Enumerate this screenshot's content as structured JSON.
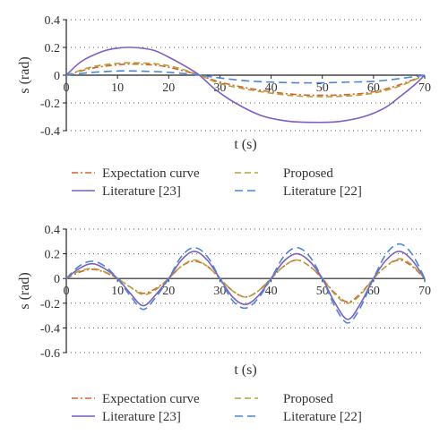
{
  "chart_data": [
    {
      "type": "line",
      "xlabel": "t (s)",
      "ylabel": "s (rad)",
      "xlim": [
        0,
        70
      ],
      "ylim": [
        -0.4,
        0.4
      ],
      "x_ticks": [
        0,
        10,
        20,
        30,
        40,
        50,
        60,
        70
      ],
      "y_ticks": [
        0.4,
        0.2,
        0,
        -0.2,
        -0.4
      ],
      "y_tick_labels": [
        "0.4",
        "0.2",
        "0",
        "-0.2",
        "-0.4"
      ],
      "grid": "horizontal-dotted",
      "legend_position": "below",
      "series": [
        {
          "name": "Expectation curve",
          "color": "#d9622b",
          "dash": "dashdot",
          "x": [
            0,
            5,
            10,
            13,
            18,
            22,
            26,
            30,
            35,
            40,
            45,
            50,
            55,
            60,
            65,
            70
          ],
          "y": [
            0,
            0.05,
            0.075,
            0.08,
            0.07,
            0.04,
            0,
            -0.05,
            -0.09,
            -0.12,
            -0.14,
            -0.145,
            -0.14,
            -0.12,
            -0.07,
            0
          ]
        },
        {
          "name": "Proposed",
          "color": "#b5a33a",
          "dash": "dashed",
          "x": [
            0,
            5,
            10,
            13,
            18,
            22,
            26,
            30,
            35,
            40,
            45,
            50,
            55,
            60,
            65,
            70
          ],
          "y": [
            0,
            0.06,
            0.085,
            0.09,
            0.08,
            0.05,
            0,
            -0.06,
            -0.1,
            -0.13,
            -0.15,
            -0.155,
            -0.15,
            -0.13,
            -0.08,
            0
          ]
        },
        {
          "name": "Literature [23]",
          "color": "#7b5fc2",
          "dash": "solid",
          "x": [
            0,
            3,
            7,
            10,
            13,
            17,
            20,
            23,
            26,
            29,
            33,
            38,
            43,
            48,
            53,
            58,
            62,
            65,
            68,
            70
          ],
          "y": [
            0,
            0.1,
            0.17,
            0.195,
            0.2,
            0.18,
            0.13,
            0.07,
            0,
            -0.1,
            -0.2,
            -0.29,
            -0.33,
            -0.34,
            -0.335,
            -0.3,
            -0.24,
            -0.16,
            -0.07,
            0
          ]
        },
        {
          "name": "Literature [22]",
          "color": "#4a86d9",
          "dash": "dashed-long",
          "x": [
            0,
            5,
            10,
            13,
            18,
            22,
            26,
            30,
            35,
            40,
            45,
            50,
            55,
            60,
            65,
            70
          ],
          "y": [
            0,
            0.02,
            0.03,
            0.03,
            0.025,
            0.015,
            0,
            -0.02,
            -0.04,
            -0.05,
            -0.055,
            -0.055,
            -0.05,
            -0.045,
            -0.025,
            0
          ]
        }
      ]
    },
    {
      "type": "line",
      "xlabel": "t (s)",
      "ylabel": "s (rad)",
      "xlim": [
        0,
        70
      ],
      "ylim": [
        -0.6,
        0.4
      ],
      "x_ticks": [
        0,
        10,
        20,
        30,
        40,
        50,
        60,
        70
      ],
      "y_ticks": [
        0.4,
        0.2,
        0,
        -0.2,
        -0.4,
        -0.6
      ],
      "y_tick_labels": [
        "0.4",
        "0.2",
        "0",
        "-0.2",
        "-0.4",
        "-0.6"
      ],
      "grid": "horizontal-dotted",
      "legend_position": "below",
      "series": [
        {
          "name": "Expectation curve",
          "color": "#d9622b",
          "dash": "dashdot",
          "x": [
            0,
            2.5,
            5,
            7.5,
            10,
            12.5,
            15,
            17.5,
            20,
            22.5,
            25,
            27.5,
            30,
            32.5,
            35,
            37.5,
            40,
            42.5,
            45,
            47.5,
            50,
            52.5,
            55,
            57.5,
            60,
            62.5,
            65,
            67.5,
            70
          ],
          "y": [
            0,
            0.05,
            0.075,
            0.05,
            0,
            -0.07,
            -0.12,
            -0.08,
            0,
            0.1,
            0.14,
            0.1,
            0,
            -0.1,
            -0.15,
            -0.1,
            0,
            0.1,
            0.15,
            0.1,
            0,
            -0.12,
            -0.19,
            -0.12,
            0,
            0.1,
            0.15,
            0.1,
            0
          ]
        },
        {
          "name": "Proposed",
          "color": "#b5a33a",
          "dash": "dashed",
          "x": [
            0,
            2.5,
            5,
            7.5,
            10,
            12.5,
            15,
            17.5,
            20,
            22.5,
            25,
            27.5,
            30,
            32.5,
            35,
            37.5,
            40,
            42.5,
            45,
            47.5,
            50,
            52.5,
            55,
            57.5,
            60,
            62.5,
            65,
            67.5,
            70
          ],
          "y": [
            0,
            0.06,
            0.08,
            0.055,
            0,
            -0.07,
            -0.13,
            -0.09,
            0,
            0.1,
            0.15,
            0.1,
            0,
            -0.1,
            -0.15,
            -0.1,
            0,
            0.1,
            0.15,
            0.1,
            0,
            -0.13,
            -0.2,
            -0.13,
            0,
            0.1,
            0.16,
            0.11,
            0
          ]
        },
        {
          "name": "Literature [23]",
          "color": "#7b5fc2",
          "dash": "solid",
          "x": [
            0,
            2.5,
            5,
            7.5,
            10,
            12.5,
            15,
            17.5,
            20,
            22.5,
            25,
            27.5,
            30,
            32.5,
            35,
            37.5,
            40,
            42.5,
            45,
            47.5,
            50,
            52.5,
            55,
            57.5,
            60,
            62.5,
            65,
            67.5,
            70
          ],
          "y": [
            0,
            0.08,
            0.12,
            0.08,
            0,
            -0.12,
            -0.22,
            -0.13,
            0,
            0.15,
            0.22,
            0.15,
            0,
            -0.15,
            -0.21,
            -0.14,
            0,
            0.14,
            0.2,
            0.14,
            0,
            -0.2,
            -0.33,
            -0.2,
            0,
            0.15,
            0.22,
            0.15,
            0
          ]
        },
        {
          "name": "Literature [22]",
          "color": "#4a86d9",
          "dash": "dashed-long",
          "x": [
            0,
            2.5,
            5,
            7.5,
            10,
            12.5,
            15,
            17.5,
            20,
            22.5,
            25,
            27.5,
            30,
            32.5,
            35,
            37.5,
            40,
            42.5,
            45,
            47.5,
            50,
            52.5,
            55,
            57.5,
            60,
            62.5,
            65,
            67.5,
            70
          ],
          "y": [
            0,
            0.1,
            0.14,
            0.1,
            0,
            -0.14,
            -0.25,
            -0.15,
            0,
            0.18,
            0.25,
            0.18,
            0,
            -0.18,
            -0.24,
            -0.16,
            0,
            0.18,
            0.25,
            0.18,
            0,
            -0.23,
            -0.36,
            -0.23,
            0,
            0.2,
            0.28,
            0.2,
            0
          ]
        }
      ]
    }
  ]
}
